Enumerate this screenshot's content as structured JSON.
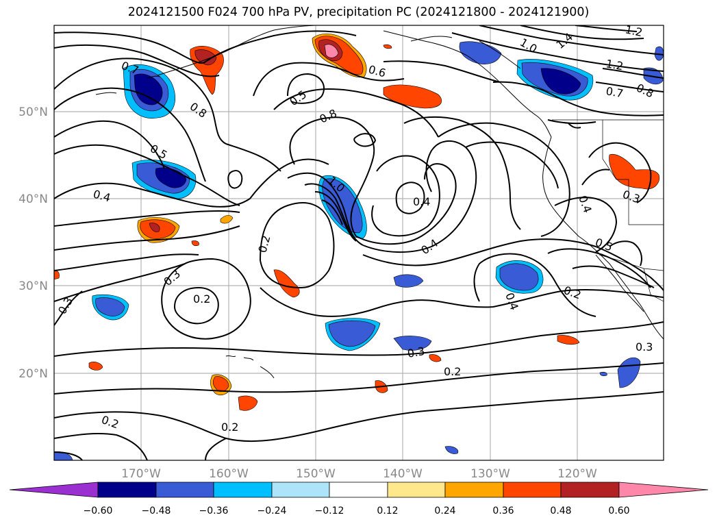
{
  "title": "2024121500 F024 700 hPa PV, precipitation PC (2024121800 - 2024121900)",
  "map": {
    "lat_labels": [
      "50°N",
      "40°N",
      "30°N",
      "20°N"
    ],
    "lon_labels": [
      "170°W",
      "160°W",
      "150°W",
      "140°W",
      "130°W",
      "120°W"
    ],
    "contour_labels": [
      "0.2",
      "0.2",
      "0.2",
      "0.2",
      "0.2",
      "0.2",
      "0.3",
      "0.3",
      "0.3",
      "0.3",
      "0.4",
      "0.4",
      "0.4",
      "0.4",
      "0.5",
      "0.5",
      "0.6",
      "0.7",
      "0.7",
      "0.8",
      "0.8",
      "1.0",
      "1.0",
      "1.2",
      "1.2",
      "1.4",
      "0.3",
      "0.4",
      "0.8",
      "0.5"
    ]
  },
  "colorbar": {
    "ticks": [
      "−0.60",
      "−0.48",
      "−0.36",
      "−0.24",
      "−0.12",
      "0.12",
      "0.24",
      "0.36",
      "0.48",
      "0.60"
    ],
    "colors": [
      "#9b30d0",
      "#00008b",
      "#3a5bd6",
      "#00bfff",
      "#ade4fa",
      "#ffffff",
      "#ffe88c",
      "#ffa500",
      "#ff4500",
      "#b22222",
      "#ff88aa"
    ]
  }
}
